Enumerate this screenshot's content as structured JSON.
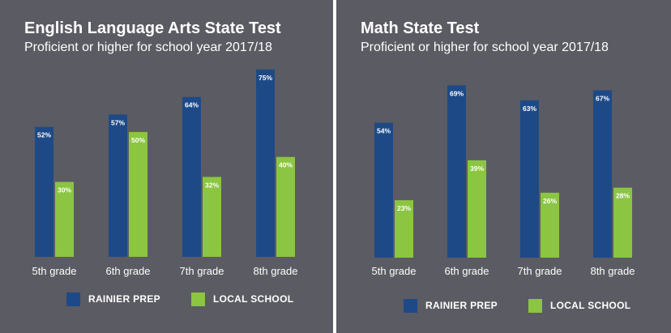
{
  "colors": {
    "background": "#5b5b63",
    "rainier_prep": "#1d4a87",
    "local_school": "#8cc541",
    "text": "#ffffff",
    "divider": "#ffffff"
  },
  "chart_data": [
    {
      "type": "bar",
      "title": "English Language Arts State Test",
      "subtitle": "Proficient or higher for school year 2017/18",
      "categories": [
        "5th grade",
        "6th grade",
        "7th grade",
        "8th grade"
      ],
      "series": [
        {
          "name": "RAINIER PREP",
          "values": [
            52,
            57,
            64,
            75
          ],
          "labels": [
            "52%",
            "57%",
            "64%",
            "75%"
          ]
        },
        {
          "name": "LOCAL SCHOOL",
          "values": [
            30,
            50,
            32,
            40
          ],
          "labels": [
            "30%",
            "50%",
            "32%",
            "40%"
          ]
        }
      ],
      "ylim": [
        0,
        85
      ],
      "grid": false,
      "legend_position": "bottom"
    },
    {
      "type": "bar",
      "title": "Math State Test",
      "subtitle": "Proficient or higher for school year 2017/18",
      "categories": [
        "5th grade",
        "6th grade",
        "7th grade",
        "8th grade"
      ],
      "series": [
        {
          "name": "RAINIER PREP",
          "values": [
            54,
            69,
            63,
            67
          ],
          "labels": [
            "54%",
            "69%",
            "63%",
            "67%"
          ]
        },
        {
          "name": "LOCAL SCHOOL",
          "values": [
            23,
            39,
            26,
            28
          ],
          "labels": [
            "23%",
            "39%",
            "26%",
            "28%"
          ]
        }
      ],
      "ylim": [
        0,
        85
      ],
      "grid": false,
      "legend_position": "bottom"
    }
  ]
}
